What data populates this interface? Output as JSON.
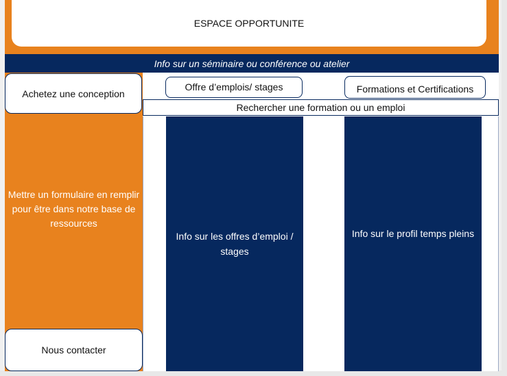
{
  "header": {
    "title": "ESPACE OPPORTUNITE"
  },
  "info_bar": {
    "text": "Info sur  un séminaire ou conférence ou atelier"
  },
  "sidebar": {
    "buy_design": "Achetez une conception",
    "form_text": "Mettre un formulaire en remplir pour être dans notre base de ressources",
    "contact": "Nous contacter"
  },
  "nav": {
    "jobs_button": "Offre d’emplois/ stages",
    "trainings_button": "Formations et Certifications"
  },
  "search": {
    "text": "Rechercher une formation ou un emploi"
  },
  "columns": {
    "jobs_info": "Info sur les offres d’emploi / stages",
    "profile_info": "Info sur le profil temps pleins"
  },
  "colors": {
    "orange": "#e8821e",
    "navy": "#06285e"
  }
}
